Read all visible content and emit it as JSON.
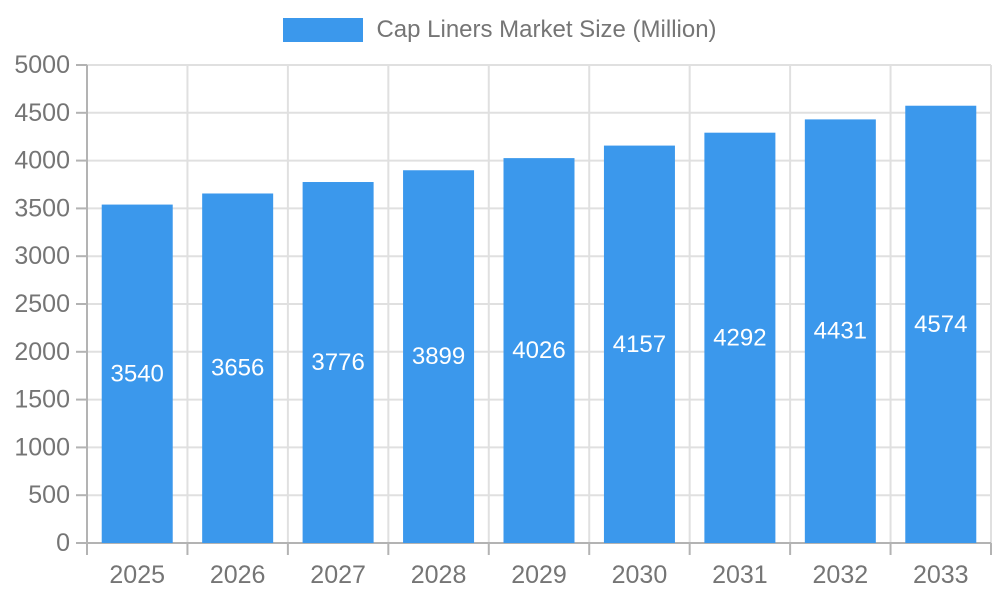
{
  "chart_data": {
    "type": "bar",
    "title": "Cap Liners Market Size (Million)",
    "categories": [
      "2025",
      "2026",
      "2027",
      "2028",
      "2029",
      "2030",
      "2031",
      "2032",
      "2033"
    ],
    "values": [
      3540,
      3656,
      3776,
      3899,
      4026,
      4157,
      4292,
      4431,
      4574
    ],
    "xlabel": "",
    "ylabel": "",
    "ylim": [
      0,
      5000
    ],
    "ytick_step": 500,
    "grid": true,
    "legend_position": "top-center",
    "value_label_position": "inside-center"
  },
  "colors": {
    "bar": "#3b98ec",
    "grid": "#e0e0e0",
    "axis": "#b3b3b3",
    "tick_text": "#757575",
    "value_label": "#ffffff",
    "legend_text": "#757575",
    "background": "#ffffff"
  }
}
